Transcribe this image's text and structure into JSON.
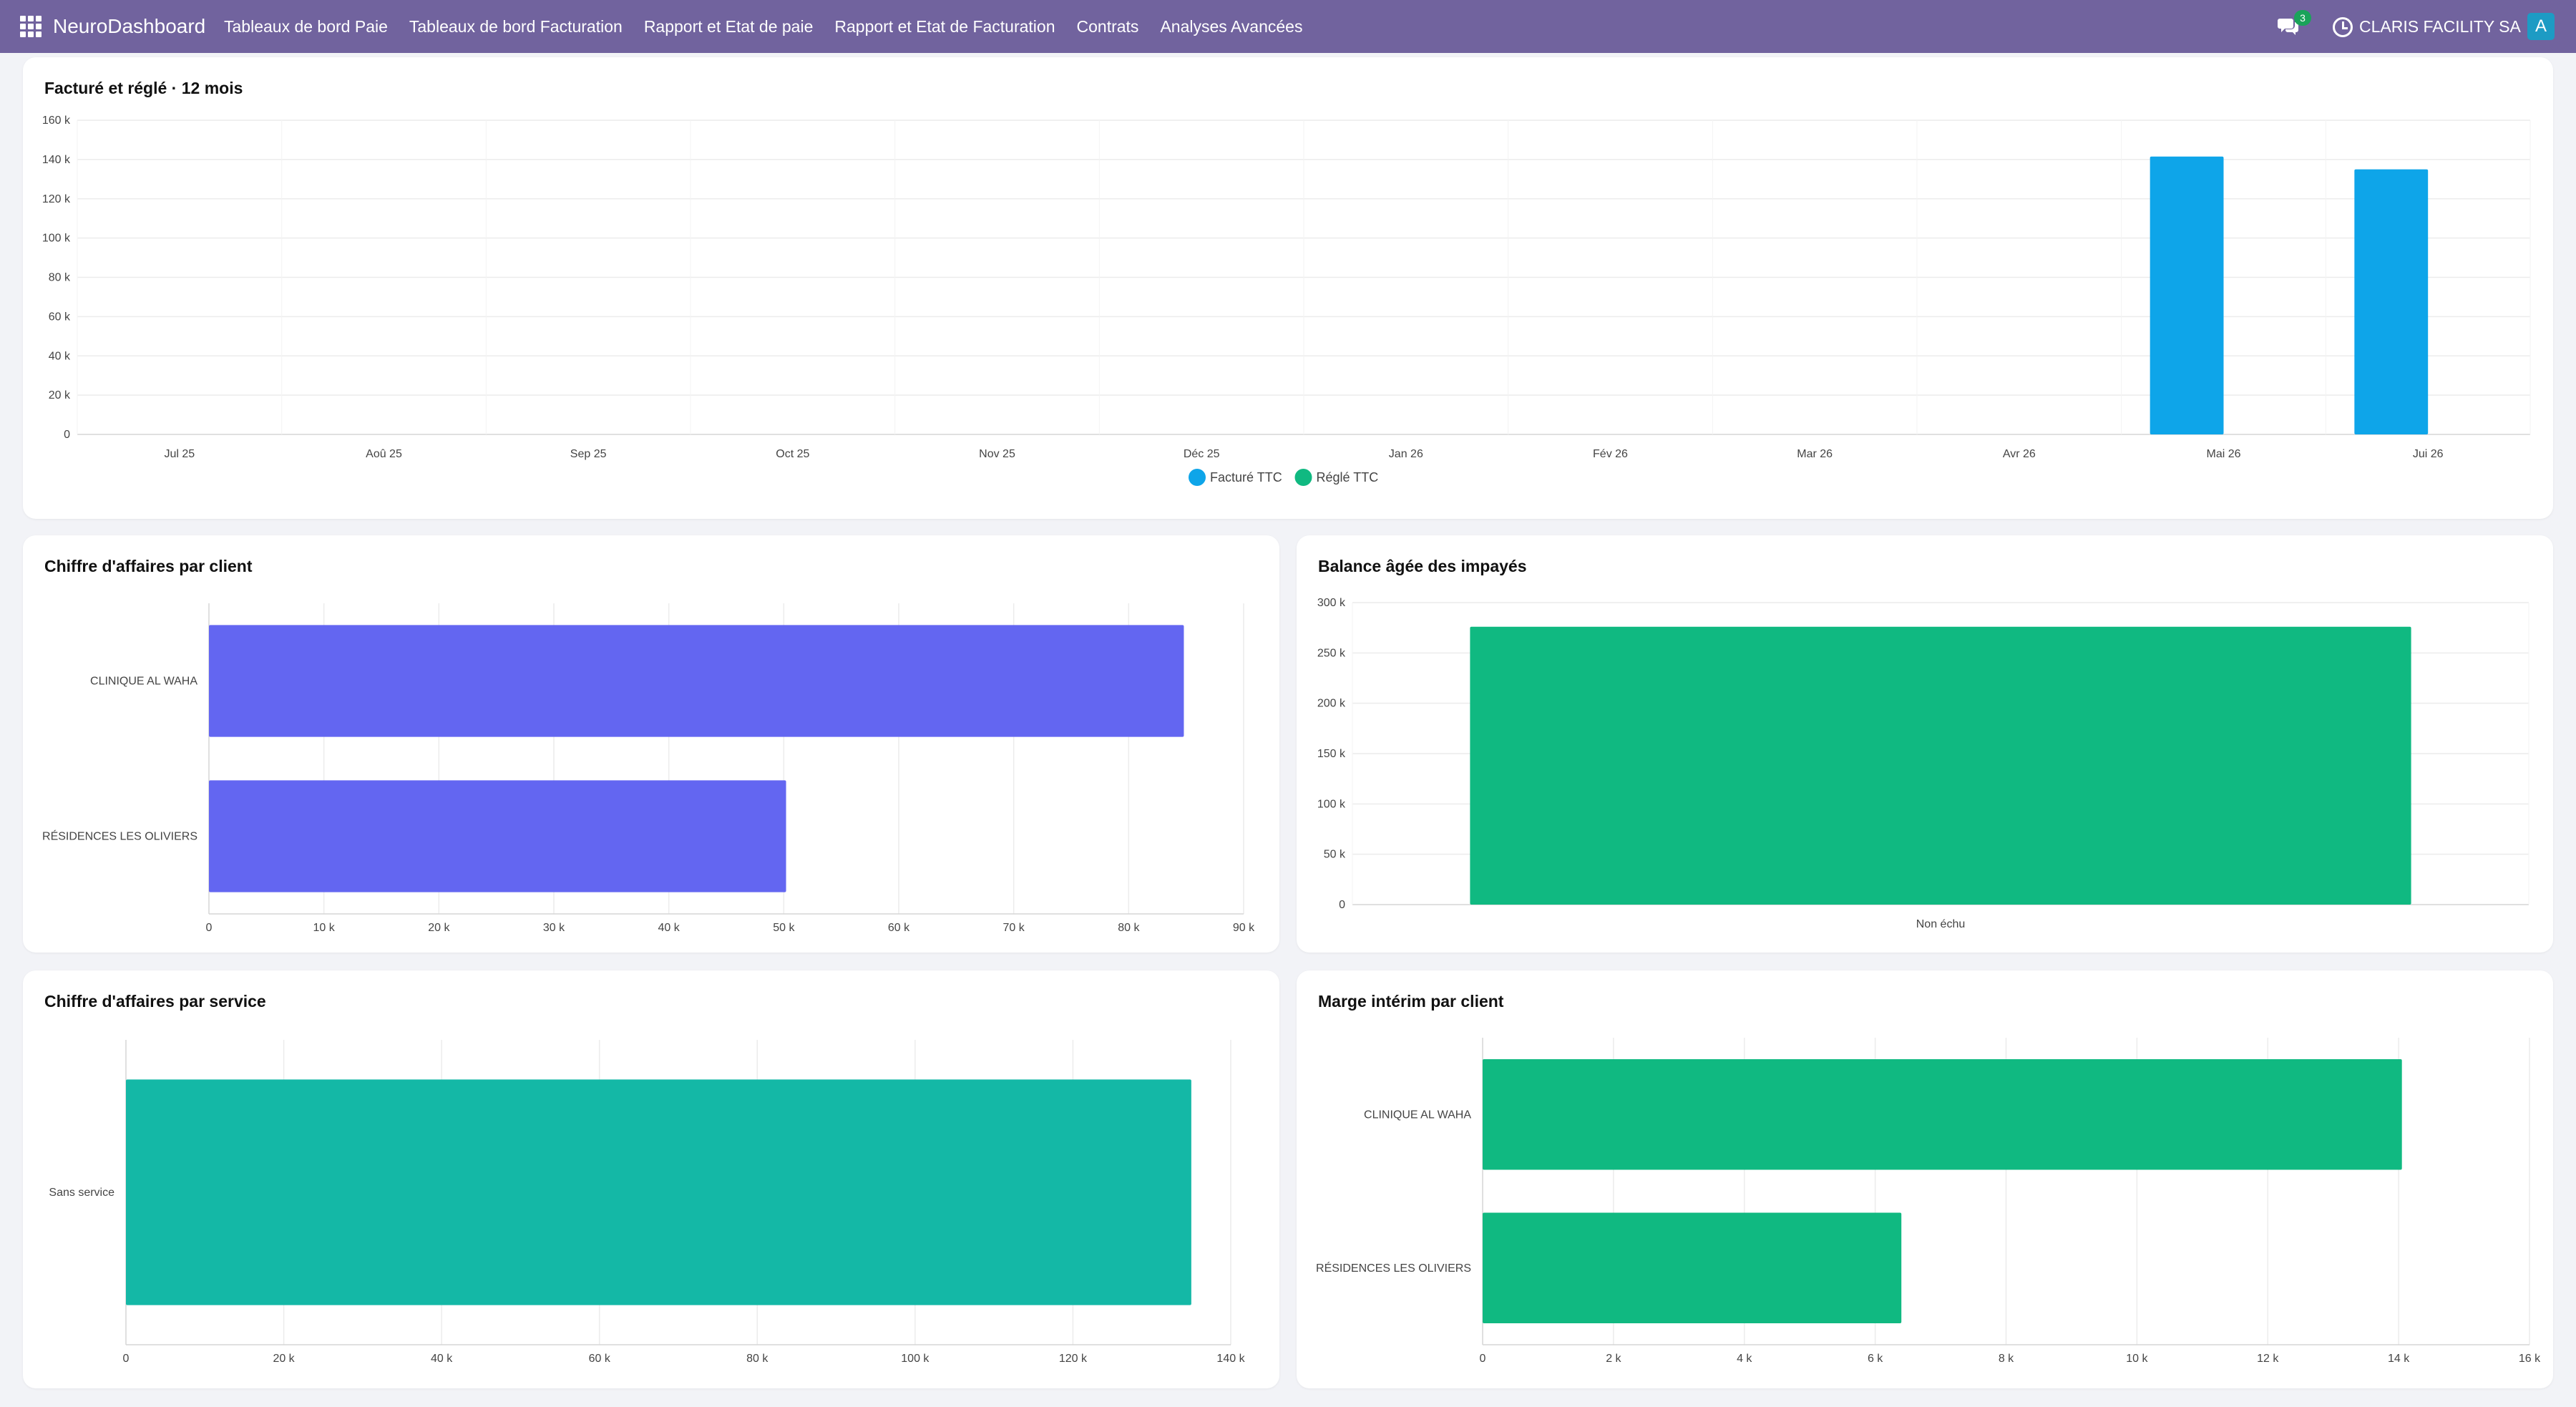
{
  "navbar": {
    "brand": "NeuroDashboard",
    "menu": [
      "Tableaux de bord Paie",
      "Tableaux de bord Facturation",
      "Rapport et Etat de paie",
      "Rapport et Etat de Facturation",
      "Contrats",
      "Analyses Avancées"
    ],
    "chat_count": "3",
    "company": "CLARIS FACILITY SA",
    "avatar_letter": "A",
    "icons": [
      "apps-grid-icon",
      "chat-icon",
      "clock-icon"
    ]
  },
  "charts": [
    {
      "id": "facture-regle",
      "title": "Facturé et réglé · 12 mois",
      "chart_data": {
        "type": "bar",
        "orientation": "vertical",
        "categories": [
          "Jul 25",
          "Aoû 25",
          "Sep 25",
          "Oct 25",
          "Nov 25",
          "Déc 25",
          "Jan 26",
          "Fév 26",
          "Mar 26",
          "Avr 26",
          "Mai 26",
          "Jui 26"
        ],
        "series": [
          {
            "name": "Facturé TTC",
            "color": "#0ea5e9",
            "values": [
              0,
              0,
              0,
              0,
              0,
              0,
              0,
              0,
              0,
              0,
              141500,
              135000
            ]
          },
          {
            "name": "Réglé TTC",
            "color": "#10b981",
            "values": [
              0,
              0,
              0,
              0,
              0,
              0,
              0,
              0,
              0,
              0,
              0,
              0
            ]
          }
        ],
        "ylim": [
          0,
          160000
        ],
        "yticks": [
          0,
          20000,
          40000,
          60000,
          80000,
          100000,
          120000,
          140000,
          160000
        ],
        "ytick_labels": [
          "0",
          "20 k",
          "40 k",
          "60 k",
          "80 k",
          "100 k",
          "120 k",
          "140 k",
          "160 k"
        ],
        "grid": true,
        "legend": "bottom-center"
      }
    },
    {
      "id": "ca-client",
      "title": "Chiffre d'affaires par client",
      "chart_data": {
        "type": "bar",
        "orientation": "horizontal",
        "categories": [
          "CLINIQUE AL WAHA",
          "RÉSIDENCES LES OLIVIERS"
        ],
        "series": [
          {
            "color": "#6366f1",
            "values": [
              84800,
              50200
            ]
          }
        ],
        "xlim": [
          0,
          90000
        ],
        "xticks": [
          0,
          10000,
          20000,
          30000,
          40000,
          50000,
          60000,
          70000,
          80000,
          90000
        ],
        "xtick_labels": [
          "0",
          "10 k",
          "20 k",
          "30 k",
          "40 k",
          "50 k",
          "60 k",
          "70 k",
          "80 k",
          "90 k"
        ],
        "grid": true
      }
    },
    {
      "id": "balance-agee",
      "title": "Balance âgée des impayés",
      "chart_data": {
        "type": "bar",
        "orientation": "vertical",
        "categories": [
          "Non échu"
        ],
        "series": [
          {
            "color": "#10b981",
            "values": [
              276000
            ]
          }
        ],
        "ylim": [
          0,
          300000
        ],
        "yticks": [
          0,
          50000,
          100000,
          150000,
          200000,
          250000,
          300000
        ],
        "ytick_labels": [
          "0",
          "50 k",
          "100 k",
          "150 k",
          "200 k",
          "250 k",
          "300 k"
        ],
        "grid": true
      }
    },
    {
      "id": "ca-service",
      "title": "Chiffre d'affaires par service",
      "chart_data": {
        "type": "bar",
        "orientation": "horizontal",
        "categories": [
          "Sans service"
        ],
        "series": [
          {
            "color": "#14b8a6",
            "values": [
              135000
            ]
          }
        ],
        "xlim": [
          0,
          140000
        ],
        "xticks": [
          0,
          20000,
          40000,
          60000,
          80000,
          100000,
          120000,
          140000
        ],
        "xtick_labels": [
          "0",
          "20 k",
          "40 k",
          "60 k",
          "80 k",
          "100 k",
          "120 k",
          "140 k"
        ],
        "grid": true
      }
    },
    {
      "id": "marge-interim",
      "title": "Marge intérim par client",
      "chart_data": {
        "type": "bar",
        "orientation": "horizontal",
        "categories": [
          "CLINIQUE AL WAHA",
          "RÉSIDENCES LES OLIVIERS"
        ],
        "series": [
          {
            "color": "#10b981",
            "values": [
              14050,
              6400
            ]
          }
        ],
        "xlim": [
          0,
          16000
        ],
        "xticks": [
          0,
          2000,
          4000,
          6000,
          8000,
          10000,
          12000,
          14000,
          16000
        ],
        "xtick_labels": [
          "0",
          "2 k",
          "4 k",
          "6 k",
          "8 k",
          "10 k",
          "12 k",
          "14 k",
          "16 k"
        ],
        "grid": true
      }
    }
  ]
}
